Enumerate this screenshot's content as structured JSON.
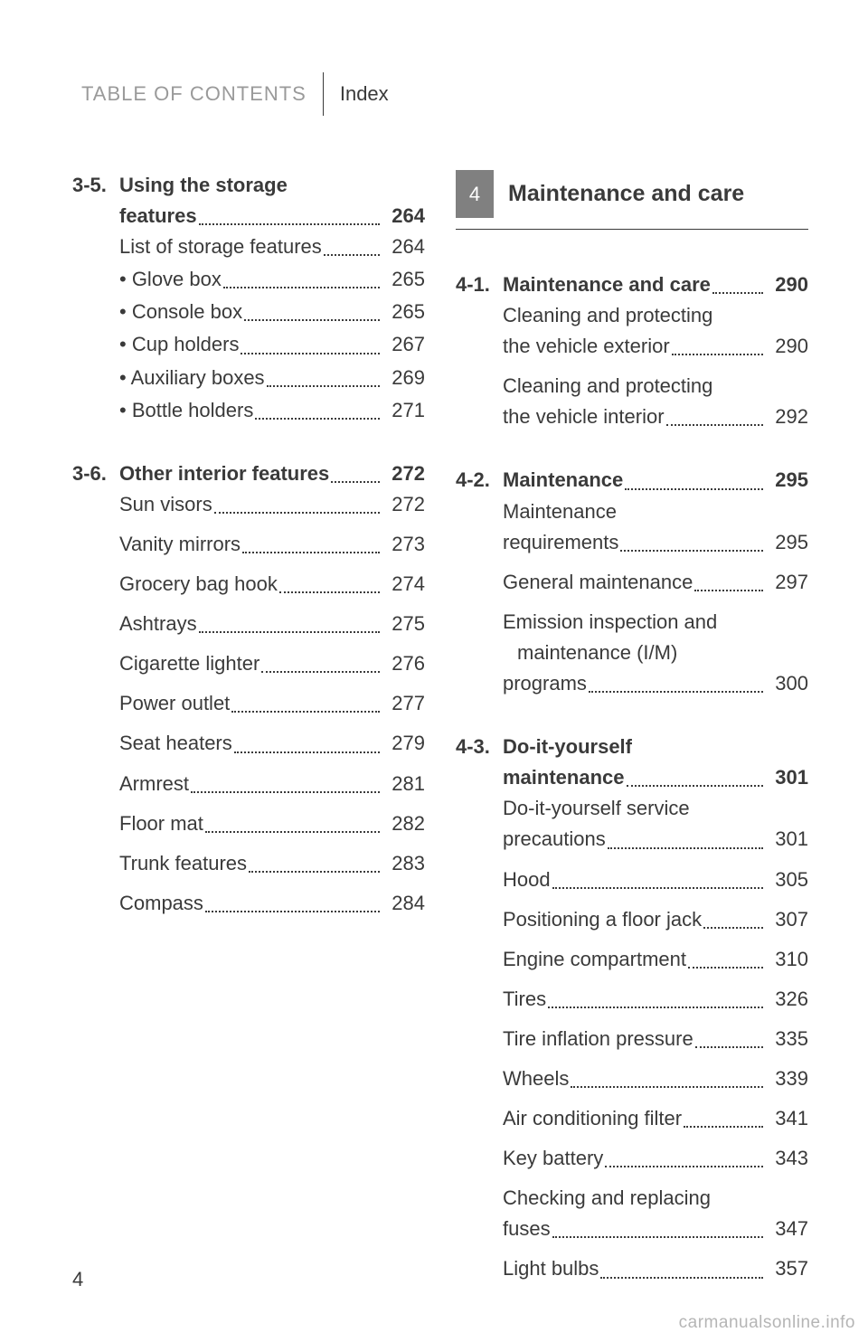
{
  "header": {
    "left": "TABLE OF CONTENTS",
    "right": "Index"
  },
  "page_number": "4",
  "watermark": "carmanualsonline.info",
  "colors": {
    "text": "#3a3a3a",
    "muted": "#9a9a9a",
    "tab_bg": "#808080",
    "tab_fg": "#ffffff",
    "background": "#ffffff"
  },
  "left": {
    "sections": [
      {
        "num": "3-5.",
        "title_pre": "Using the storage",
        "title_last": "features",
        "page": "264",
        "tight": true,
        "items": [
          {
            "label": "List of storage features",
            "page": "264"
          },
          {
            "label": "• Glove box",
            "page": "265"
          },
          {
            "label": "• Console box",
            "page": "265"
          },
          {
            "label": "• Cup holders",
            "page": "267"
          },
          {
            "label": "• Auxiliary boxes",
            "page": "269"
          },
          {
            "label": "• Bottle holders",
            "page": "271"
          }
        ]
      },
      {
        "num": "3-6.",
        "title_last": "Other interior features",
        "page": "272",
        "items": [
          {
            "label": "Sun visors",
            "page": "272"
          },
          {
            "label": "Vanity mirrors",
            "page": "273"
          },
          {
            "label": "Grocery bag hook",
            "page": "274"
          },
          {
            "label": "Ashtrays",
            "page": "275"
          },
          {
            "label": "Cigarette lighter",
            "page": "276"
          },
          {
            "label": "Power outlet",
            "page": "277"
          },
          {
            "label": "Seat heaters",
            "page": "279"
          },
          {
            "label": "Armrest",
            "page": "281"
          },
          {
            "label": "Floor mat",
            "page": "282"
          },
          {
            "label": "Trunk features",
            "page": "283"
          },
          {
            "label": "Compass",
            "page": "284"
          }
        ]
      }
    ]
  },
  "right": {
    "chapter": {
      "num": "4",
      "title": "Maintenance and care"
    },
    "sections": [
      {
        "num": "4-1.",
        "title_last": "Maintenance and care",
        "page": "290",
        "items": [
          {
            "pre": "Cleaning and protecting",
            "label": "the vehicle exterior",
            "page": "290",
            "indent": true
          },
          {
            "pre": "Cleaning and protecting",
            "label": "the vehicle interior",
            "page": "292",
            "indent": true
          }
        ]
      },
      {
        "num": "4-2.",
        "title_last": "Maintenance",
        "page": "295",
        "items": [
          {
            "pre": "Maintenance",
            "label": "requirements",
            "page": "295",
            "indent": true
          },
          {
            "label": "General maintenance",
            "page": "297"
          },
          {
            "pre": "Emission inspection and",
            "pre2": "maintenance (I/M)",
            "label": "programs",
            "page": "300",
            "indent": true
          }
        ]
      },
      {
        "num": "4-3.",
        "title_pre": "Do-it-yourself",
        "title_last": "maintenance",
        "page": "301",
        "items": [
          {
            "pre": "Do-it-yourself service",
            "label": "precautions",
            "page": "301",
            "indent": true
          },
          {
            "label": "Hood",
            "page": "305"
          },
          {
            "label": "Positioning a floor jack",
            "page": "307"
          },
          {
            "label": "Engine compartment",
            "page": "310"
          },
          {
            "label": "Tires",
            "page": "326"
          },
          {
            "label": "Tire inflation pressure",
            "page": "335"
          },
          {
            "label": "Wheels",
            "page": "339"
          },
          {
            "label": "Air conditioning filter",
            "page": "341"
          },
          {
            "label": "Key battery",
            "page": "343"
          },
          {
            "pre": "Checking and replacing",
            "label": "fuses",
            "page": "347",
            "indent": true
          },
          {
            "label": "Light bulbs",
            "page": "357"
          }
        ]
      }
    ]
  }
}
